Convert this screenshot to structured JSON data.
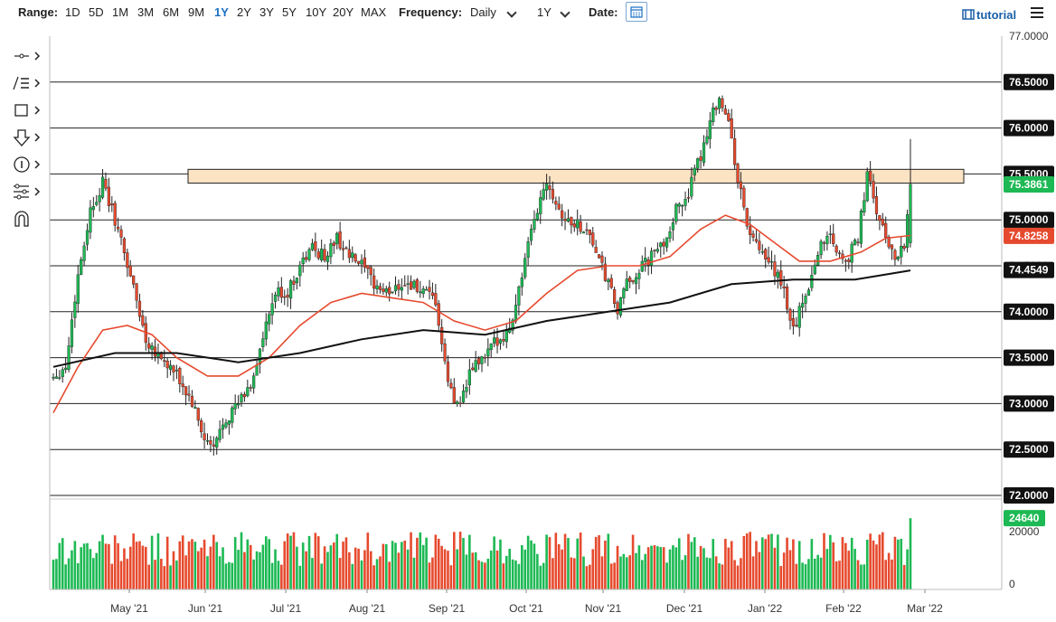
{
  "toolbar": {
    "range_label": "Range:",
    "ranges": [
      "1D",
      "5D",
      "1M",
      "3M",
      "6M",
      "9M",
      "1Y",
      "2Y",
      "3Y",
      "5Y",
      "10Y",
      "20Y",
      "MAX"
    ],
    "active_range": "1Y",
    "frequency_label": "Frequency:",
    "frequency_value": "Daily",
    "period_value": "1Y",
    "date_label": "Date:",
    "tutorial_label": "tutorial"
  },
  "sidebar": {
    "tools": [
      "crosshair-icon",
      "line-tools-icon",
      "rectangle-icon",
      "arrow-icon",
      "annotation-icon",
      "indicator-icon",
      "magnet-icon"
    ]
  },
  "colors": {
    "up": "#1db954",
    "down": "#e64a2e",
    "ma_short": "#e64a2e",
    "ma_long": "#111111",
    "zone": "#fbe3c4",
    "accent": "#1a6fc4"
  },
  "chart_data": {
    "type": "candlestick",
    "price_axis": {
      "ylim": [
        72.0,
        77.0
      ],
      "ticks": [
        "77.0000",
        "76.5000",
        "76.0000",
        "75.5000",
        "75.0000",
        "74.5000",
        "74.0000",
        "73.5000",
        "73.0000",
        "72.5000",
        "72.0000"
      ],
      "tagged_levels": [
        "76.5000",
        "76.0000",
        "75.5000",
        "75.0000",
        "74.0000",
        "73.5000",
        "73.0000",
        "72.5000",
        "72.0000"
      ]
    },
    "horizontal_lines": [
      76.5,
      76.0,
      75.5,
      75.0,
      74.5,
      74.0,
      73.5,
      73.0,
      72.5,
      72.0
    ],
    "resistance_zone": {
      "from": 75.4,
      "to": 75.55
    },
    "x_axis_labels": [
      "May '21",
      "Jun '21",
      "Jul '21",
      "Aug '21",
      "Sep '21",
      "Oct '21",
      "Nov '21",
      "Dec '21",
      "Jan '22",
      "Feb '22",
      "Mar '22"
    ],
    "price_path": [
      [
        0,
        73.3
      ],
      [
        4,
        73.4
      ],
      [
        8,
        74.4
      ],
      [
        12,
        75.1
      ],
      [
        16,
        75.4
      ],
      [
        20,
        75.0
      ],
      [
        25,
        74.4
      ],
      [
        30,
        73.7
      ],
      [
        35,
        73.5
      ],
      [
        40,
        73.3
      ],
      [
        45,
        73.0
      ],
      [
        49,
        72.6
      ],
      [
        52,
        72.5
      ],
      [
        55,
        72.8
      ],
      [
        60,
        73.0
      ],
      [
        64,
        73.2
      ],
      [
        68,
        73.7
      ],
      [
        72,
        74.2
      ],
      [
        76,
        74.2
      ],
      [
        80,
        74.5
      ],
      [
        84,
        74.7
      ],
      [
        88,
        74.6
      ],
      [
        92,
        74.8
      ],
      [
        96,
        74.6
      ],
      [
        100,
        74.5
      ],
      [
        104,
        74.3
      ],
      [
        108,
        74.2
      ],
      [
        112,
        74.3
      ],
      [
        116,
        74.3
      ],
      [
        120,
        74.2
      ],
      [
        124,
        74.1
      ],
      [
        127,
        73.4
      ],
      [
        130,
        73.0
      ],
      [
        133,
        73.1
      ],
      [
        136,
        73.4
      ],
      [
        140,
        73.5
      ],
      [
        144,
        73.7
      ],
      [
        148,
        73.8
      ],
      [
        152,
        74.4
      ],
      [
        156,
        75.0
      ],
      [
        160,
        75.45
      ],
      [
        163,
        75.2
      ],
      [
        166,
        75.0
      ],
      [
        170,
        74.95
      ],
      [
        174,
        74.85
      ],
      [
        177,
        74.55
      ],
      [
        180,
        74.3
      ],
      [
        183,
        74.0
      ],
      [
        186,
        74.3
      ],
      [
        190,
        74.45
      ],
      [
        194,
        74.6
      ],
      [
        198,
        74.75
      ],
      [
        202,
        75.1
      ],
      [
        206,
        75.3
      ],
      [
        210,
        75.7
      ],
      [
        213,
        76.1
      ],
      [
        216,
        76.35
      ],
      [
        219,
        76.05
      ],
      [
        222,
        75.45
      ],
      [
        225,
        74.95
      ],
      [
        228,
        74.7
      ],
      [
        231,
        74.55
      ],
      [
        234,
        74.45
      ],
      [
        237,
        74.2
      ],
      [
        240,
        73.8
      ],
      [
        243,
        74.1
      ],
      [
        246,
        74.4
      ],
      [
        249,
        74.75
      ],
      [
        252,
        74.85
      ],
      [
        255,
        74.6
      ],
      [
        258,
        74.6
      ],
      [
        261,
        74.8
      ],
      [
        264,
        75.5
      ],
      [
        267,
        75.1
      ],
      [
        270,
        74.8
      ],
      [
        273,
        74.6
      ],
      [
        276,
        74.75
      ],
      [
        278,
        75.35
      ]
    ],
    "moving_averages": [
      {
        "type": "short",
        "color": "#e64a2e",
        "end_value": 74.8258,
        "points": [
          [
            0,
            72.9
          ],
          [
            8,
            73.4
          ],
          [
            16,
            73.8
          ],
          [
            24,
            73.85
          ],
          [
            32,
            73.75
          ],
          [
            40,
            73.5
          ],
          [
            50,
            73.3
          ],
          [
            60,
            73.3
          ],
          [
            70,
            73.5
          ],
          [
            80,
            73.85
          ],
          [
            90,
            74.1
          ],
          [
            100,
            74.2
          ],
          [
            110,
            74.15
          ],
          [
            120,
            74.1
          ],
          [
            130,
            73.9
          ],
          [
            140,
            73.8
          ],
          [
            150,
            73.9
          ],
          [
            160,
            74.2
          ],
          [
            170,
            74.45
          ],
          [
            180,
            74.5
          ],
          [
            190,
            74.5
          ],
          [
            200,
            74.6
          ],
          [
            210,
            74.9
          ],
          [
            218,
            75.05
          ],
          [
            226,
            74.95
          ],
          [
            234,
            74.75
          ],
          [
            242,
            74.55
          ],
          [
            252,
            74.55
          ],
          [
            262,
            74.65
          ],
          [
            270,
            74.8
          ],
          [
            278,
            74.83
          ]
        ]
      },
      {
        "type": "long",
        "color": "#111111",
        "end_value": 74.4549,
        "points": [
          [
            0,
            73.4
          ],
          [
            20,
            73.55
          ],
          [
            40,
            73.55
          ],
          [
            60,
            73.45
          ],
          [
            80,
            73.55
          ],
          [
            100,
            73.7
          ],
          [
            120,
            73.8
          ],
          [
            140,
            73.75
          ],
          [
            160,
            73.9
          ],
          [
            180,
            74.0
          ],
          [
            200,
            74.1
          ],
          [
            220,
            74.3
          ],
          [
            240,
            74.35
          ],
          [
            260,
            74.35
          ],
          [
            278,
            74.45
          ]
        ]
      }
    ],
    "last_price": {
      "value": 75.3861,
      "label": "75.3861"
    },
    "ma_tags": [
      {
        "value": 74.8258,
        "label": "74.8258"
      },
      {
        "value": 74.4549,
        "label": "74.4549"
      }
    ],
    "volume": {
      "ylim": [
        0,
        30000
      ],
      "ticks": [
        "20000",
        "0"
      ],
      "last_label": "24640",
      "last_value": 24640
    }
  }
}
